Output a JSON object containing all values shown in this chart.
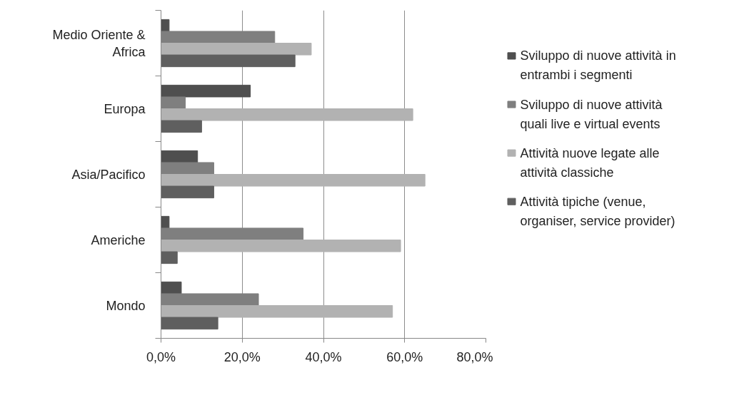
{
  "chart_data": {
    "type": "bar",
    "orientation": "horizontal",
    "categories": [
      "Medio Oriente & Africa",
      "Europa",
      "Asia/Pacifico",
      "Americhe",
      "Mondo"
    ],
    "series": [
      {
        "name": "Sviluppo di nuove attività in entrambi i segmenti",
        "color": "#4f4f4f",
        "values": [
          2,
          22,
          9,
          2,
          5
        ]
      },
      {
        "name": "Sviluppo di nuove attività quali live e virtual events",
        "color": "#7f7f7f",
        "values": [
          28,
          6,
          13,
          35,
          24
        ]
      },
      {
        "name": "Attività nuove legate alle attività classiche",
        "color": "#b2b2b2",
        "values": [
          37,
          62,
          65,
          59,
          57
        ]
      },
      {
        "name": "Attività tipiche (venue, organiser, service provider)",
        "color": "#5f5f5f",
        "values": [
          33,
          10,
          13,
          4,
          14
        ]
      }
    ],
    "xlim": [
      0,
      80
    ],
    "xticks": [
      {
        "value": 0,
        "label": "0,0%"
      },
      {
        "value": 20,
        "label": "20,0%"
      },
      {
        "value": 40,
        "label": "40,0%"
      },
      {
        "value": 60,
        "label": "60,0%"
      },
      {
        "value": 80,
        "label": "80,0%"
      }
    ],
    "grid": "x",
    "legend": "right"
  }
}
